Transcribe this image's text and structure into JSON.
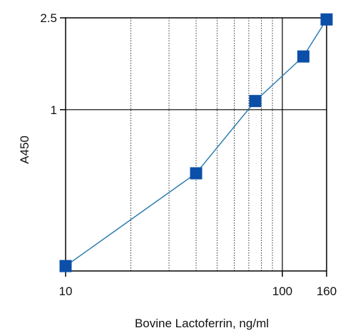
{
  "chart_data": {
    "type": "line",
    "title": "",
    "xlabel": "Bovine Lactoferrin, ng/ml",
    "ylabel": "A450",
    "x_scale": "log",
    "y_scale": "log",
    "xlim": [
      10,
      160
    ],
    "ylim": [
      0.2,
      2.5
    ],
    "x_tick_labels": [
      {
        "value": 10,
        "label": "10"
      },
      {
        "value": 100,
        "label": "100"
      },
      {
        "value": 160,
        "label": "160"
      }
    ],
    "y_tick_labels": [
      {
        "value": 2.5,
        "label": "2.5"
      },
      {
        "value": 1,
        "label": "1"
      }
    ],
    "grid": {
      "major": true,
      "minor_x": true,
      "minor_x_style": "dotted"
    },
    "legend": "none",
    "series": [
      {
        "x": [
          10,
          40,
          75,
          125,
          160
        ],
        "y": [
          0.21,
          0.53,
          1.09,
          1.7,
          2.46
        ],
        "color": "#2f7fb0",
        "marker": "square",
        "marker_color": "#0b4fa8"
      }
    ]
  }
}
